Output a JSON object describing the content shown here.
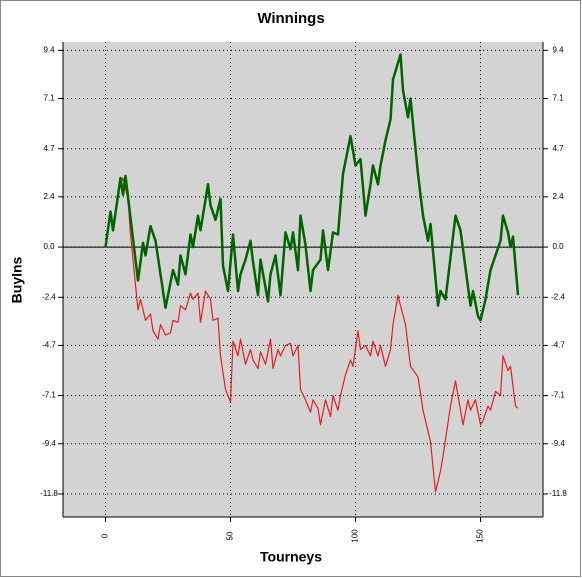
{
  "chart_data": {
    "type": "line",
    "title": "Winnings",
    "xlabel": "Tourneys",
    "ylabel": "BuyIns",
    "xlim": [
      -17,
      175
    ],
    "xticks": [
      0,
      50,
      100,
      150
    ],
    "ylim": [
      -12.9,
      9.8
    ],
    "yticks": [
      9.4,
      7.1,
      4.7,
      2.4,
      {
        "value": 0,
        "label": "0.0"
      },
      -2.4,
      -4.7,
      -7.1,
      -9.4,
      -11.8
    ],
    "grid": true,
    "series": [
      {
        "color": "#006400",
        "x": [
          0,
          2,
          3,
          6,
          7,
          8,
          13,
          15,
          16,
          18,
          20,
          24,
          27,
          29,
          30,
          32,
          34,
          35,
          37,
          38,
          41,
          42,
          44,
          46,
          47,
          49,
          51,
          53,
          54,
          56,
          58,
          59,
          61,
          62,
          65,
          66,
          68,
          70,
          72,
          74,
          75,
          77,
          78,
          80,
          82,
          83,
          86,
          87,
          89,
          91,
          93,
          95,
          98,
          100,
          102,
          104,
          106,
          107,
          109,
          110,
          112,
          114,
          115,
          118,
          119,
          121,
          122,
          125,
          127,
          129,
          130,
          133,
          134,
          136,
          140,
          142,
          146,
          147,
          149,
          150,
          152,
          154,
          158,
          159,
          161,
          162,
          163,
          165
        ],
        "values": [
          0,
          1.7,
          0.8,
          3.3,
          2.5,
          3.4,
          -1.6,
          0.2,
          -0.4,
          1.0,
          0.3,
          -2.9,
          -1.1,
          -1.8,
          -0.4,
          -1.3,
          0.6,
          0,
          1.5,
          0.8,
          3.0,
          2.0,
          1.3,
          2.3,
          -0.9,
          -2.1,
          0.6,
          -2.1,
          -1.3,
          -0.6,
          0.3,
          -0.7,
          -2.3,
          -0.6,
          -2.6,
          -1.3,
          -0.4,
          -2.3,
          0.7,
          -0.1,
          0.7,
          -1.1,
          1.5,
          0.1,
          -2.1,
          -1.1,
          -0.6,
          0.8,
          -1.1,
          0.7,
          0.6,
          3.5,
          5.3,
          3.9,
          4.2,
          1.5,
          3.0,
          3.9,
          3.0,
          3.9,
          5.1,
          6.1,
          8.0,
          9.2,
          7.5,
          6.2,
          7.1,
          3.5,
          1.5,
          0.3,
          1.1,
          -2.8,
          -2.1,
          -2.5,
          1.5,
          0.8,
          -2.8,
          -2.1,
          -3.3,
          -3.5,
          -2.5,
          -1.1,
          0.3,
          1.5,
          0.7,
          0,
          0.5,
          -2.3
        ]
      },
      {
        "color": "#e02020",
        "x": [
          6,
          7,
          9,
          10,
          13,
          14,
          16,
          18,
          19,
          21,
          22,
          24,
          26,
          27,
          29,
          30,
          32,
          34,
          35,
          37,
          38,
          40,
          42,
          43,
          45,
          46,
          48,
          50,
          51,
          53,
          54,
          56,
          58,
          59,
          61,
          62,
          64,
          66,
          67,
          69,
          70,
          72,
          74,
          75,
          77,
          78,
          80,
          82,
          83,
          85,
          86,
          88,
          90,
          91,
          93,
          94,
          96,
          98,
          99,
          101,
          102,
          104,
          106,
          107,
          109,
          110,
          112,
          114,
          115,
          117,
          118,
          120,
          122,
          125,
          127,
          130,
          132,
          134,
          135,
          138,
          140,
          142,
          143,
          145,
          146,
          148,
          150,
          151,
          153,
          154,
          156,
          158,
          159,
          161,
          162,
          164,
          165
        ],
        "values": [
          3.0,
          3.3,
          2.3,
          0.6,
          -3.0,
          -2.5,
          -3.5,
          -3.2,
          -4.0,
          -4.4,
          -3.7,
          -4.2,
          -4.1,
          -3.5,
          -3.6,
          -2.8,
          -3.0,
          -2.2,
          -2.5,
          -2.2,
          -3.6,
          -2.1,
          -2.5,
          -3.5,
          -3.4,
          -5.2,
          -6.8,
          -7.4,
          -4.5,
          -5.2,
          -4.4,
          -5.6,
          -4.9,
          -5.4,
          -5.8,
          -5.0,
          -5.6,
          -4.4,
          -5.8,
          -4.9,
          -5.2,
          -4.7,
          -4.6,
          -5.2,
          -4.7,
          -6.8,
          -7.3,
          -7.9,
          -7.3,
          -7.7,
          -8.5,
          -7.3,
          -8.1,
          -7.1,
          -7.8,
          -7.1,
          -6.1,
          -5.4,
          -5.7,
          -4.0,
          -4.9,
          -4.7,
          -5.2,
          -4.5,
          -5.2,
          -4.7,
          -5.7,
          -4.9,
          -3.7,
          -2.3,
          -2.8,
          -3.7,
          -5.7,
          -6.2,
          -7.8,
          -9.3,
          -11.7,
          -10.7,
          -10.0,
          -7.6,
          -6.4,
          -7.8,
          -8.5,
          -7.3,
          -7.8,
          -7.3,
          -8.5,
          -8.3,
          -7.6,
          -7.8,
          -6.9,
          -7.1,
          -5.2,
          -5.9,
          -5.7,
          -7.6,
          -7.7
        ]
      }
    ]
  }
}
